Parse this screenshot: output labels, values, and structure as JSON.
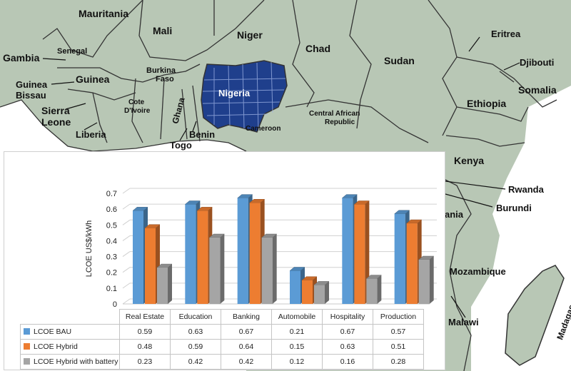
{
  "map": {
    "countries": [
      {
        "name": "Mauritania"
      },
      {
        "name": "Mali"
      },
      {
        "name": "Niger"
      },
      {
        "name": "Chad"
      },
      {
        "name": "Sudan"
      },
      {
        "name": "Eritrea"
      },
      {
        "name": "Djibouti"
      },
      {
        "name": "Somalia"
      },
      {
        "name": "Ethiopia"
      },
      {
        "name": "Gambia"
      },
      {
        "name": "Senegal"
      },
      {
        "name": "Guinea"
      },
      {
        "name": "Guinea"
      },
      {
        "name": "Bissau"
      },
      {
        "name": "Burkina"
      },
      {
        "name": "Faso"
      },
      {
        "name": "Nigeria"
      },
      {
        "name": "Cote"
      },
      {
        "name": "D'Ivoire"
      },
      {
        "name": "Ghana"
      },
      {
        "name": "Sierra"
      },
      {
        "name": "Leone"
      },
      {
        "name": "Liberia"
      },
      {
        "name": "Benin"
      },
      {
        "name": "Togo"
      },
      {
        "name": "Cameroon"
      },
      {
        "name": "Central African"
      },
      {
        "name": "Republic"
      },
      {
        "name": "Kenya"
      },
      {
        "name": "Rwanda"
      },
      {
        "name": "Burundi"
      },
      {
        "name": "Mozambique"
      },
      {
        "name": "Malawi"
      },
      {
        "name": "Madagascar"
      },
      {
        "name": "ania"
      }
    ],
    "colors": {
      "land": "#b8c7b5",
      "border": "#333333",
      "nigeria_panel": "#1f3f8c",
      "arrow": "#111111"
    }
  },
  "chart_data": {
    "type": "bar",
    "categories": [
      "Real Estate",
      "Education",
      "Banking",
      "Automobile",
      "Hospitality",
      "Production"
    ],
    "series": [
      {
        "name": "LCOE BAU",
        "color": "#5b9bd5",
        "values": [
          0.59,
          0.63,
          0.67,
          0.21,
          0.67,
          0.57
        ],
        "labels": [
          "0.59",
          "0.63",
          "0.67",
          "0.21",
          "0.67",
          "0.57"
        ]
      },
      {
        "name": "LCOE Hybrid",
        "color": "#ed7d31",
        "values": [
          0.48,
          0.59,
          0.64,
          0.15,
          0.63,
          0.51
        ],
        "labels": [
          "0.48",
          "0.59",
          "0.64",
          "0.15",
          "0.63",
          "0.51"
        ]
      },
      {
        "name": "LCOE Hybrid with battery",
        "color": "#a5a5a5",
        "values": [
          0.23,
          0.42,
          0.42,
          0.12,
          0.16,
          0.28
        ],
        "labels": [
          "0.23",
          "0.42",
          "0.42",
          "0.12",
          "0.16",
          "0.28"
        ]
      }
    ],
    "ylabel": "LCOE US$/kWh",
    "ylim": [
      0,
      0.7
    ],
    "yticks": [
      "0",
      "0.1",
      "0.2",
      "0.3",
      "0.4",
      "0.5",
      "0.6",
      "0.7"
    ],
    "grid": true,
    "legend": "data table below chart",
    "style": "3d clustered columns"
  }
}
